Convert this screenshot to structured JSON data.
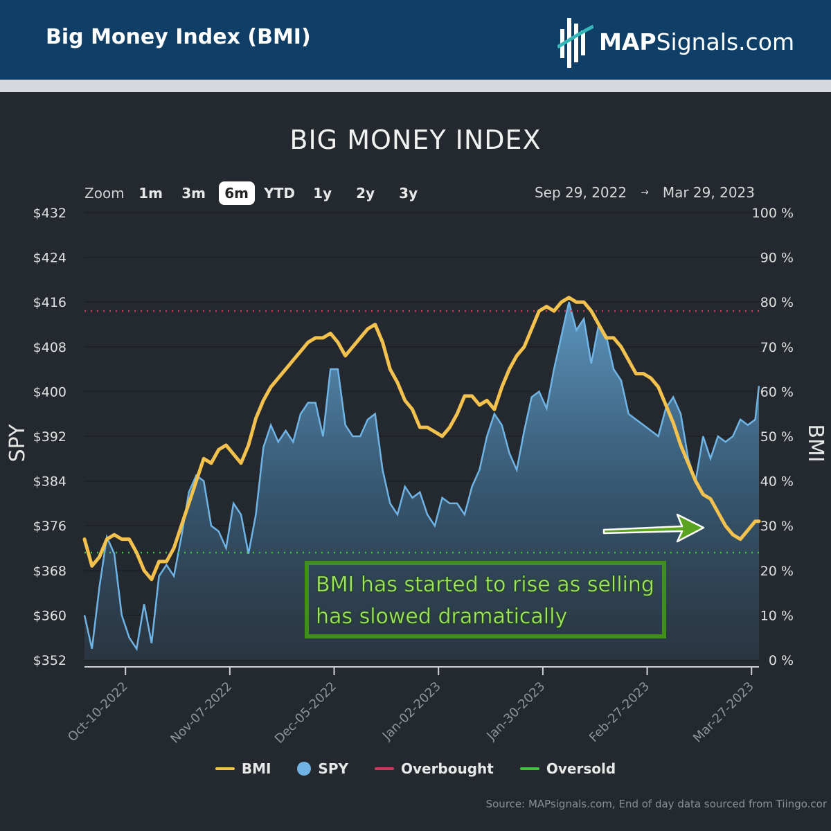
{
  "header": {
    "title": "Big Money Index (BMI)",
    "brand_bold": "MAP",
    "brand_rest": "Signals.com"
  },
  "chart_title": "BIG MONEY INDEX",
  "zoom": {
    "label": "Zoom",
    "options": [
      "1m",
      "3m",
      "6m",
      "YTD",
      "1y",
      "2y",
      "3y"
    ],
    "selected": "6m"
  },
  "range": {
    "from": "Sep 29, 2022",
    "arrow": "→",
    "to": "Mar 29, 2023"
  },
  "annotation": {
    "line1": "BMI has started to rise as selling",
    "line2": "has slowed dramatically"
  },
  "source": "Source: MAPsignals.com, End of day data sourced from Tiingo.cor",
  "colors": {
    "bmi": "#f2c14e",
    "spy": "#6fb4e4",
    "overbought": "#c43c5a",
    "oversold": "#3cc43c",
    "arrow": "#5aa321"
  },
  "chart_data": {
    "type": "line",
    "title": "BIG MONEY INDEX",
    "y_left": {
      "label": "SPY",
      "min": 352,
      "max": 432,
      "ticks": [
        "$432",
        "$424",
        "$416",
        "$408",
        "$400",
        "$392",
        "$384",
        "$376",
        "$368",
        "$360",
        "$352"
      ]
    },
    "y_right": {
      "label": "BMI",
      "min": 0,
      "max": 100,
      "ticks": [
        "100 %",
        "90 %",
        "80 %",
        "70 %",
        "60 %",
        "50 %",
        "40 %",
        "30 %",
        "20 %",
        "10 %",
        "0 %"
      ]
    },
    "x_ticks": [
      "Oct-10-2022",
      "Nov-07-2022",
      "Dec-05-2022",
      "Jan-02-2023",
      "Jan-30-2023",
      "Feb-27-2023",
      "Mar-27-2023"
    ],
    "overbought": 78,
    "oversold": 24,
    "series": [
      {
        "name": "BMI",
        "x": [
          "2022-09-29",
          "2022-10-01",
          "2022-10-03",
          "2022-10-05",
          "2022-10-07",
          "2022-10-09",
          "2022-10-11",
          "2022-10-13",
          "2022-10-15",
          "2022-10-17",
          "2022-10-19",
          "2022-10-21",
          "2022-10-23",
          "2022-10-25",
          "2022-10-27",
          "2022-10-29",
          "2022-10-31",
          "2022-11-02",
          "2022-11-04",
          "2022-11-06",
          "2022-11-08",
          "2022-11-10",
          "2022-11-12",
          "2022-11-14",
          "2022-11-16",
          "2022-11-18",
          "2022-11-20",
          "2022-11-22",
          "2022-11-24",
          "2022-11-26",
          "2022-11-28",
          "2022-11-30",
          "2022-12-02",
          "2022-12-04",
          "2022-12-06",
          "2022-12-08",
          "2022-12-10",
          "2022-12-12",
          "2022-12-14",
          "2022-12-16",
          "2022-12-18",
          "2022-12-20",
          "2022-12-22",
          "2022-12-24",
          "2022-12-26",
          "2022-12-28",
          "2022-12-30",
          "2023-01-01",
          "2023-01-03",
          "2023-01-05",
          "2023-01-07",
          "2023-01-09",
          "2023-01-11",
          "2023-01-13",
          "2023-01-15",
          "2023-01-17",
          "2023-01-19",
          "2023-01-21",
          "2023-01-23",
          "2023-01-25",
          "2023-01-27",
          "2023-01-29",
          "2023-01-31",
          "2023-02-02",
          "2023-02-04",
          "2023-02-06",
          "2023-02-08",
          "2023-02-10",
          "2023-02-12",
          "2023-02-14",
          "2023-02-16",
          "2023-02-18",
          "2023-02-20",
          "2023-02-22",
          "2023-02-24",
          "2023-02-26",
          "2023-02-28",
          "2023-03-02",
          "2023-03-04",
          "2023-03-06",
          "2023-03-08",
          "2023-03-10",
          "2023-03-12",
          "2023-03-14",
          "2023-03-16",
          "2023-03-18",
          "2023-03-20",
          "2023-03-22",
          "2023-03-24",
          "2023-03-26",
          "2023-03-28",
          "2023-03-29"
        ],
        "values": [
          27,
          21,
          23,
          27,
          28,
          27,
          27,
          24,
          20,
          18,
          22,
          22,
          25,
          30,
          35,
          40,
          45,
          44,
          47,
          48,
          46,
          44,
          48,
          54,
          58,
          61,
          63,
          65,
          67,
          69,
          71,
          72,
          72,
          73,
          71,
          68,
          70,
          72,
          74,
          75,
          71,
          65,
          62,
          58,
          56,
          52,
          52,
          51,
          50,
          52,
          55,
          59,
          59,
          57,
          58,
          56,
          61,
          65,
          68,
          70,
          74,
          78,
          79,
          78,
          80,
          81,
          80,
          80,
          78,
          75,
          72,
          72,
          70,
          67,
          64,
          64,
          63,
          61,
          57,
          53,
          48,
          44,
          40,
          37,
          36,
          33,
          30,
          28,
          27,
          29,
          31,
          31
        ]
      },
      {
        "name": "SPY",
        "x": [
          "2022-09-29",
          "2022-10-01",
          "2022-10-03",
          "2022-10-05",
          "2022-10-07",
          "2022-10-09",
          "2022-10-11",
          "2022-10-13",
          "2022-10-15",
          "2022-10-17",
          "2022-10-19",
          "2022-10-21",
          "2022-10-23",
          "2022-10-25",
          "2022-10-27",
          "2022-10-29",
          "2022-10-31",
          "2022-11-02",
          "2022-11-04",
          "2022-11-06",
          "2022-11-08",
          "2022-11-10",
          "2022-11-12",
          "2022-11-14",
          "2022-11-16",
          "2022-11-18",
          "2022-11-20",
          "2022-11-22",
          "2022-11-24",
          "2022-11-26",
          "2022-11-28",
          "2022-11-30",
          "2022-12-02",
          "2022-12-04",
          "2022-12-06",
          "2022-12-08",
          "2022-12-10",
          "2022-12-12",
          "2022-12-14",
          "2022-12-16",
          "2022-12-18",
          "2022-12-20",
          "2022-12-22",
          "2022-12-24",
          "2022-12-26",
          "2022-12-28",
          "2022-12-30",
          "2023-01-01",
          "2023-01-03",
          "2023-01-05",
          "2023-01-07",
          "2023-01-09",
          "2023-01-11",
          "2023-01-13",
          "2023-01-15",
          "2023-01-17",
          "2023-01-19",
          "2023-01-21",
          "2023-01-23",
          "2023-01-25",
          "2023-01-27",
          "2023-01-29",
          "2023-01-31",
          "2023-02-02",
          "2023-02-04",
          "2023-02-06",
          "2023-02-08",
          "2023-02-10",
          "2023-02-12",
          "2023-02-14",
          "2023-02-16",
          "2023-02-18",
          "2023-02-20",
          "2023-02-22",
          "2023-02-24",
          "2023-02-26",
          "2023-02-28",
          "2023-03-02",
          "2023-03-04",
          "2023-03-06",
          "2023-03-08",
          "2023-03-10",
          "2023-03-12",
          "2023-03-14",
          "2023-03-16",
          "2023-03-18",
          "2023-03-20",
          "2023-03-22",
          "2023-03-24",
          "2023-03-26",
          "2023-03-28",
          "2023-03-29"
        ],
        "values": [
          360,
          354,
          365,
          374,
          371,
          360,
          356,
          354,
          362,
          355,
          367,
          369,
          367,
          374,
          382,
          385,
          384,
          376,
          375,
          372,
          380,
          378,
          371,
          378,
          390,
          394,
          391,
          393,
          391,
          396,
          398,
          398,
          392,
          404,
          404,
          394,
          392,
          392,
          395,
          396,
          386,
          380,
          378,
          383,
          381,
          382,
          378,
          376,
          381,
          380,
          380,
          378,
          383,
          386,
          392,
          396,
          394,
          389,
          386,
          393,
          399,
          400,
          397,
          404,
          410,
          416,
          411,
          413,
          405,
          412,
          410,
          404,
          402,
          396,
          395,
          394,
          393,
          392,
          397,
          399,
          396,
          388,
          384,
          392,
          388,
          392,
          391,
          392,
          395,
          394,
          395,
          401
        ]
      }
    ]
  }
}
